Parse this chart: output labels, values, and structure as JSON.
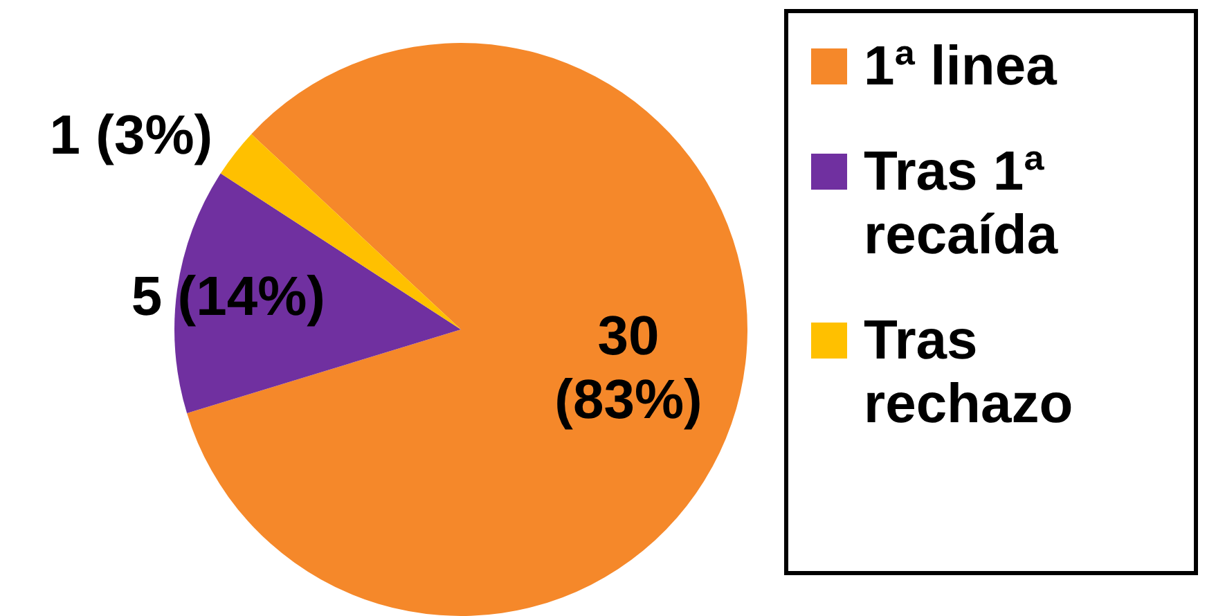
{
  "chart_data": {
    "type": "pie",
    "categories": [
      "1ª linea",
      "Tras 1ª recaída",
      "Tras rechazo"
    ],
    "values": [
      30,
      5,
      1
    ],
    "colors": [
      "#f5882a",
      "#7030a0",
      "#ffc000"
    ],
    "value_labels": [
      "30 (83%)",
      "5 (14%)",
      "1 (3%)"
    ],
    "legend": "right"
  }
}
